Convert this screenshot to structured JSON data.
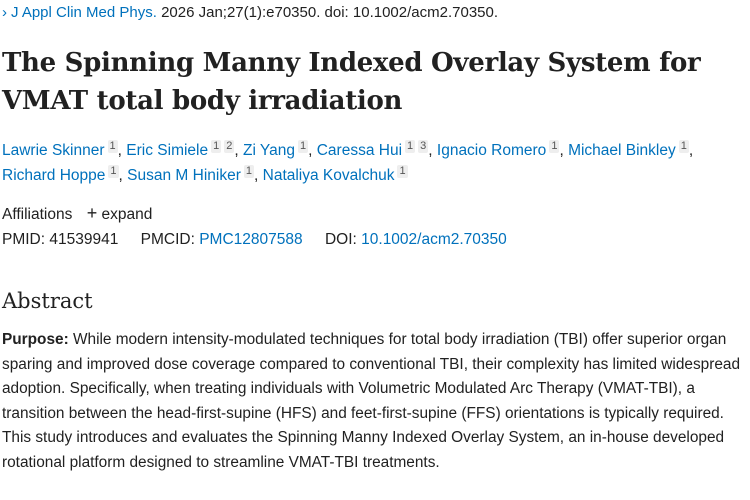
{
  "citation": {
    "journal": "J Appl Clin Med Phys.",
    "details": "2026 Jan;27(1):e70350. doi: 10.1002/acm2.70350."
  },
  "title": "The Spinning Manny Indexed Overlay System for VMAT total body irradiation",
  "authors": [
    {
      "name": "Lawrie Skinner",
      "affs": [
        "1"
      ]
    },
    {
      "name": "Eric Simiele",
      "affs": [
        "1",
        "2"
      ]
    },
    {
      "name": "Zi Yang",
      "affs": [
        "1"
      ]
    },
    {
      "name": "Caressa Hui",
      "affs": [
        "1",
        "3"
      ]
    },
    {
      "name": "Ignacio Romero",
      "affs": [
        "1"
      ]
    },
    {
      "name": "Michael Binkley",
      "affs": [
        "1"
      ]
    },
    {
      "name": "Richard Hoppe",
      "affs": [
        "1"
      ]
    },
    {
      "name": "Susan M Hiniker",
      "affs": [
        "1"
      ]
    },
    {
      "name": "Nataliya Kovalchuk",
      "affs": [
        "1"
      ]
    }
  ],
  "affiliations": {
    "label": "Affiliations",
    "expand_label": "expand"
  },
  "ids": {
    "pmid_label": "PMID:",
    "pmid": "41539941",
    "pmcid_label": "PMCID:",
    "pmcid": "PMC12807588",
    "doi_label": "DOI:",
    "doi": "10.1002/acm2.70350"
  },
  "abstract": {
    "heading": "Abstract",
    "purpose_label": "Purpose:",
    "purpose_text": " While modern intensity-modulated techniques for total body irradiation (TBI) offer superior organ sparing and improved dose coverage compared to conventional TBI, their complexity has limited widespread adoption. Specifically, when treating individuals with Volumetric Modulated Arc Therapy (VMAT-TBI), a transition between the head-first-supine (HFS) and feet-first-supine (FFS) orientations is typically required. This study introduces and evaluates the Spinning Manny Indexed Overlay System, an in-house developed rotational platform designed to streamline VMAT-TBI treatments."
  }
}
